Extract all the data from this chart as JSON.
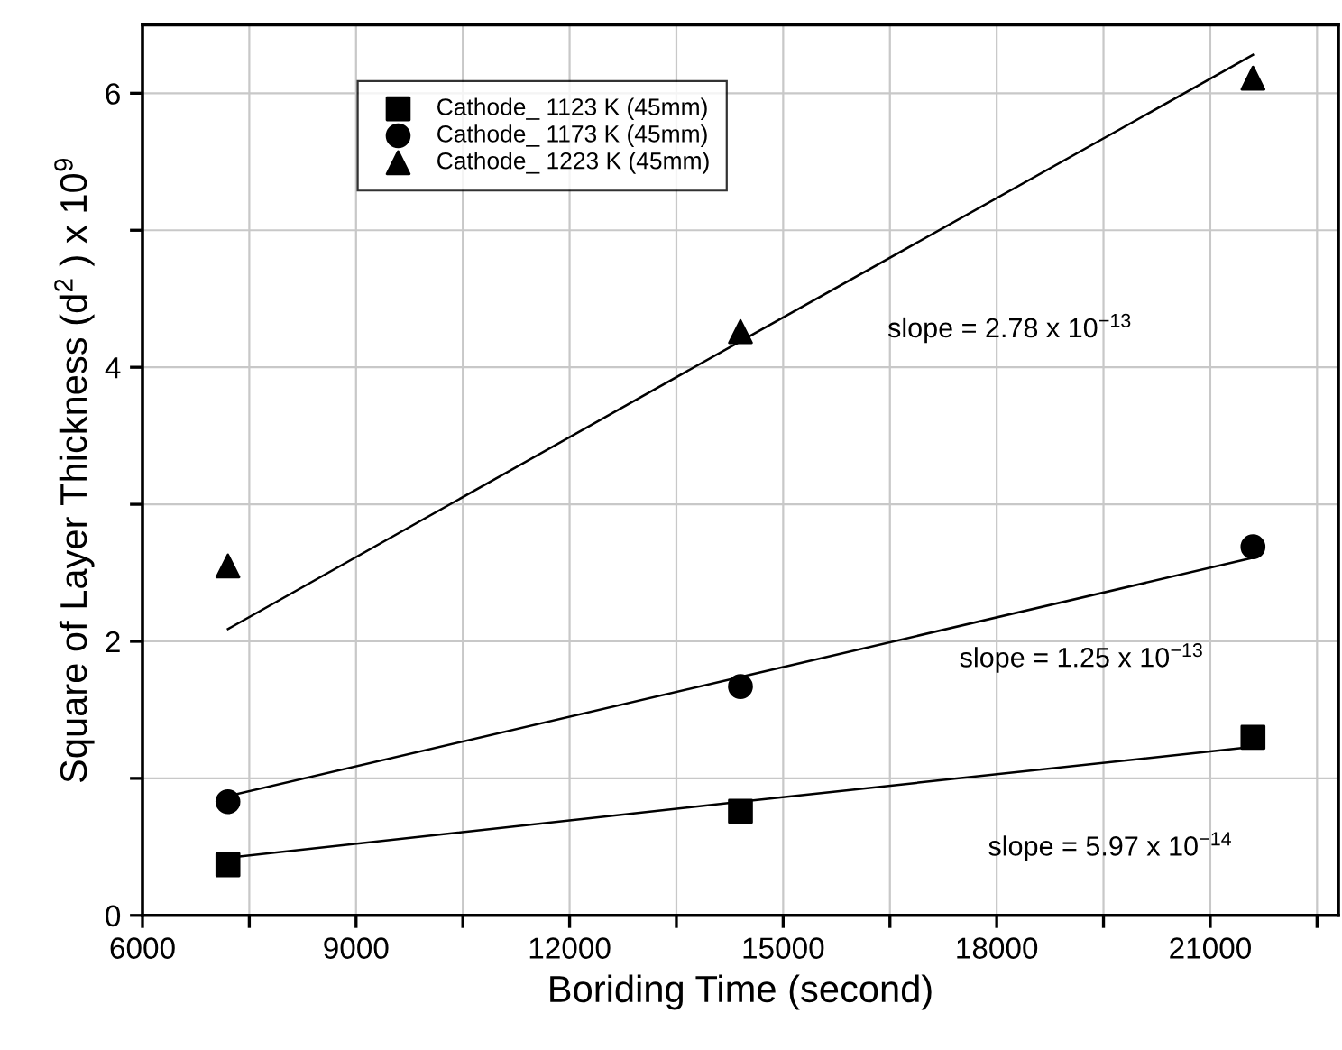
{
  "chart_data": {
    "type": "scatter",
    "xlabel": "Boriding Time (second)",
    "ylabel": "Square of Layer Thickness (d$^{2}$ ) x 10$^{9}$",
    "xlim": [
      6000,
      22800
    ],
    "ylim": [
      0,
      6.5
    ],
    "xticks": [
      6000,
      {
        "value": 7500,
        "label": null
      },
      9000,
      {
        "value": 10500,
        "label": null
      },
      12000,
      {
        "value": 13500,
        "label": null
      },
      15000,
      {
        "value": 16500,
        "label": null
      },
      18000,
      {
        "value": 19500,
        "label": null
      },
      21000,
      {
        "value": 22500,
        "label": null
      }
    ],
    "yticks": [
      0,
      {
        "value": 1,
        "label": null
      },
      2,
      {
        "value": 3,
        "label": null
      },
      4,
      {
        "value": 5,
        "label": null
      },
      6
    ],
    "grid": true,
    "legend": "top left",
    "x": [
      7200,
      14400,
      21600
    ],
    "series": [
      {
        "name": "Cathode_ 1123 K (45mm)",
        "color": "#000000",
        "marker": "square",
        "values": [
          0.37,
          0.76,
          1.3
        ]
      },
      {
        "name": "Cathode_ 1173 K (45mm)",
        "color": "#000000",
        "marker": "circle",
        "values": [
          0.83,
          1.67,
          2.69
        ]
      },
      {
        "name": "Cathode_ 1223 K (45mm)",
        "color": "#000000",
        "marker": "triangle",
        "values": [
          2.55,
          4.26,
          6.11
        ]
      },
      {
        "type": "line",
        "color": "#000000",
        "marker": "none",
        "values": [
          0.42,
          0.83,
          1.23
        ]
      },
      {
        "type": "line",
        "color": "#000000",
        "marker": "none",
        "values": [
          0.87,
          1.74,
          2.61
        ]
      },
      {
        "type": "line",
        "color": "#000000",
        "marker": "none",
        "values": [
          2.09,
          4.19,
          6.28
        ]
      }
    ],
    "annotations": [
      "slope = 2.78 x 10$^{−13}$",
      "slope = 1.25 x 10$^{−13}$",
      "slope = 5.97 x 10$^{−14}$"
    ]
  }
}
